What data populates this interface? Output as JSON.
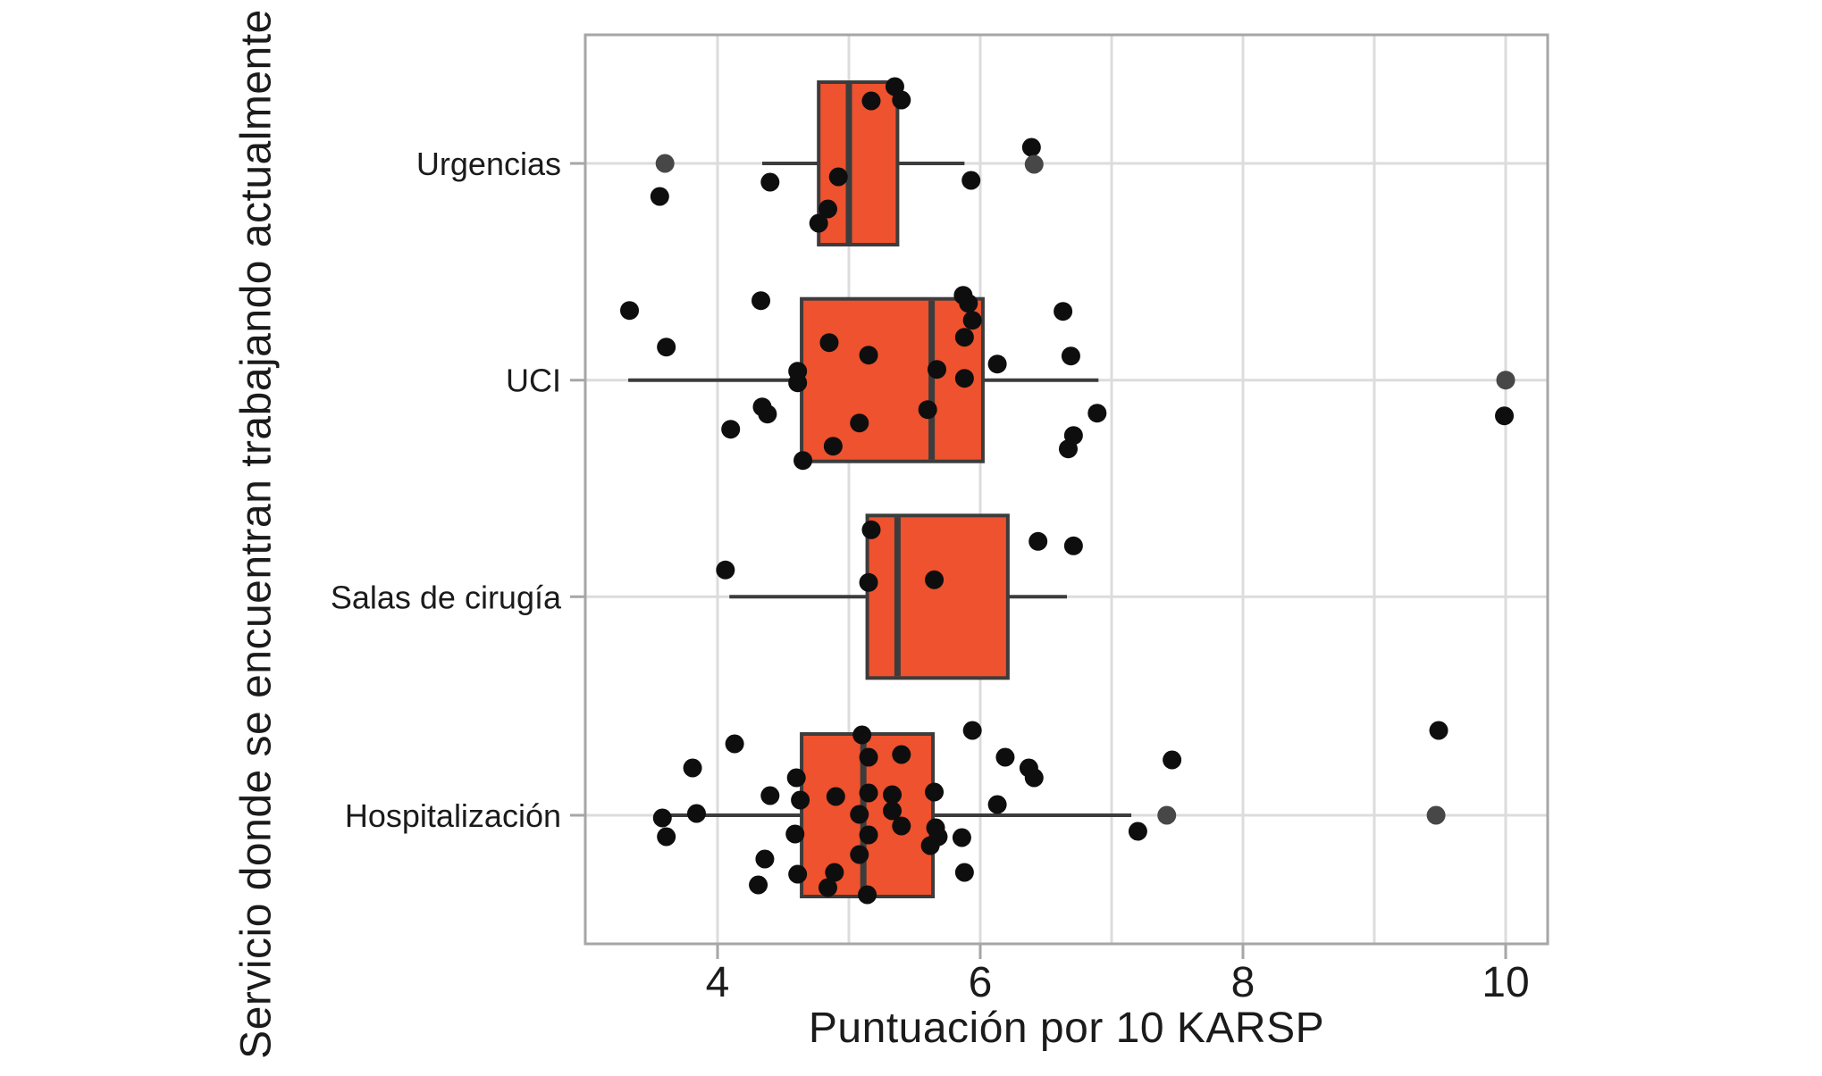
{
  "chart_data": {
    "type": "boxplot",
    "orientation": "horizontal",
    "xlabel": "Puntuación por 10 KARSP",
    "ylabel": "Servicio donde se encuentran trabajando actualmente",
    "x_major_ticks": [
      4,
      6,
      8,
      10
    ],
    "x_gridlines": [
      4,
      5,
      6,
      7,
      8,
      9,
      10
    ],
    "xlim": [
      3.0,
      10.33
    ],
    "grid_on": true,
    "colors": {
      "box_fill": "#EE522E",
      "box_stroke": "#3C3C3C",
      "point": "#0E0E0E",
      "outlier_marker": "#474747",
      "gridline": "#DCDCDC",
      "panel_border": "#A6A6A6",
      "tick": "#A6A6A6",
      "text": "#1B1B1B"
    },
    "categories": [
      {
        "label": "Urgencias",
        "box": {
          "whisker_min": 4.34,
          "q1": 4.77,
          "median": 5.0,
          "q3": 5.37,
          "whisker_max": 5.88
        },
        "points": [
          [
            3.56,
            37
          ],
          [
            4.4,
            21
          ],
          [
            4.77,
            67
          ],
          [
            4.84,
            51
          ],
          [
            4.92,
            15
          ],
          [
            5.17,
            -70
          ],
          [
            5.35,
            -86
          ],
          [
            5.4,
            -71
          ],
          [
            5.93,
            19
          ],
          [
            6.39,
            -18
          ]
        ],
        "outlier_points": [
          [
            3.6,
            0
          ],
          [
            6.41,
            1
          ]
        ]
      },
      {
        "label": "UCI",
        "box": {
          "whisker_min": 3.32,
          "q1": 4.64,
          "median": 5.63,
          "q3": 6.02,
          "whisker_max": 6.9
        },
        "points": [
          [
            3.33,
            -78
          ],
          [
            3.61,
            -37
          ],
          [
            4.1,
            55
          ],
          [
            4.33,
            -89
          ],
          [
            4.34,
            30
          ],
          [
            4.38,
            38
          ],
          [
            4.61,
            -10
          ],
          [
            4.61,
            3
          ],
          [
            4.65,
            90
          ],
          [
            4.85,
            -42
          ],
          [
            4.88,
            74
          ],
          [
            5.08,
            48
          ],
          [
            5.15,
            -28
          ],
          [
            5.6,
            33
          ],
          [
            5.67,
            -12
          ],
          [
            5.87,
            -95
          ],
          [
            5.91,
            -86
          ],
          [
            5.94,
            -67
          ],
          [
            5.88,
            -48
          ],
          [
            5.88,
            -2
          ],
          [
            6.13,
            -18
          ],
          [
            6.63,
            -77
          ],
          [
            6.69,
            -27
          ],
          [
            6.67,
            77
          ],
          [
            6.71,
            62
          ],
          [
            6.89,
            37
          ],
          [
            9.99,
            40
          ]
        ],
        "outlier_points": [
          [
            10.0,
            0
          ]
        ]
      },
      {
        "label": "Salas de cirugía",
        "box": {
          "whisker_min": 4.09,
          "q1": 5.14,
          "median": 5.37,
          "q3": 6.21,
          "whisker_max": 6.66
        },
        "points": [
          [
            4.06,
            -30
          ],
          [
            5.15,
            -16
          ],
          [
            5.17,
            -75
          ],
          [
            5.65,
            -19
          ],
          [
            6.44,
            -62
          ],
          [
            6.71,
            -57
          ]
        ],
        "outlier_points": []
      },
      {
        "label": "Hospitalización",
        "box": {
          "whisker_min": 3.55,
          "q1": 4.64,
          "median": 5.11,
          "q3": 5.64,
          "whisker_max": 7.15
        },
        "points": [
          [
            3.58,
            3
          ],
          [
            3.61,
            24
          ],
          [
            3.81,
            -53
          ],
          [
            3.84,
            -2
          ],
          [
            4.13,
            -80
          ],
          [
            4.31,
            78
          ],
          [
            4.36,
            49
          ],
          [
            4.4,
            -22
          ],
          [
            4.59,
            21
          ],
          [
            4.6,
            -42
          ],
          [
            4.61,
            66
          ],
          [
            4.63,
            -17
          ],
          [
            4.84,
            81
          ],
          [
            4.89,
            64
          ],
          [
            4.9,
            -21
          ],
          [
            5.08,
            -1
          ],
          [
            5.08,
            44
          ],
          [
            5.1,
            -90
          ],
          [
            5.14,
            89
          ],
          [
            5.15,
            -65
          ],
          [
            5.15,
            -25
          ],
          [
            5.15,
            22
          ],
          [
            5.33,
            -23
          ],
          [
            5.33,
            -5
          ],
          [
            5.4,
            -68
          ],
          [
            5.4,
            12
          ],
          [
            5.62,
            34
          ],
          [
            5.65,
            -26
          ],
          [
            5.66,
            14
          ],
          [
            5.68,
            24
          ],
          [
            5.86,
            25
          ],
          [
            5.88,
            64
          ],
          [
            5.94,
            -95
          ],
          [
            6.13,
            -12
          ],
          [
            6.19,
            -65
          ],
          [
            6.37,
            -53
          ],
          [
            6.41,
            -42
          ],
          [
            7.2,
            18
          ],
          [
            7.46,
            -62
          ],
          [
            9.49,
            -95
          ]
        ],
        "outlier_points": [
          [
            7.42,
            0
          ],
          [
            9.47,
            0
          ]
        ]
      }
    ]
  }
}
